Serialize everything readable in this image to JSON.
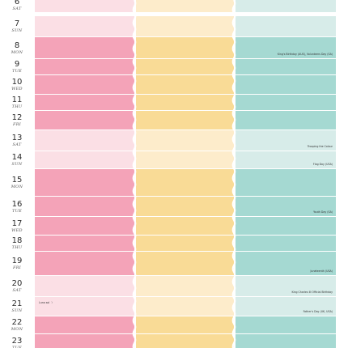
{
  "colors": {
    "pink": "#f4a3b8",
    "pink_light": "#fbdfe5",
    "yellow": "#f9db96",
    "yellow_light": "#fdeccb",
    "teal": "#a5d9d2",
    "teal_light": "#d7ece9"
  },
  "days": [
    {
      "num": "6",
      "abbr": "SAT",
      "weekend": true
    },
    {
      "num": "7",
      "abbr": "SUN",
      "weekend": true
    },
    {
      "num": "8",
      "abbr": "MON",
      "weekend": false,
      "note": "King's Birthday (AUS), Volunteers Day (SA)"
    },
    {
      "num": "9",
      "abbr": "TUE",
      "weekend": false
    },
    {
      "num": "10",
      "abbr": "WED",
      "weekend": false
    },
    {
      "num": "11",
      "abbr": "THU",
      "weekend": false
    },
    {
      "num": "12",
      "abbr": "FRI",
      "weekend": false
    },
    {
      "num": "13",
      "abbr": "SAT",
      "weekend": true,
      "note": "Trooping the Colour"
    },
    {
      "num": "14",
      "abbr": "SUN",
      "weekend": true,
      "note": "Flag Day (USA)"
    },
    {
      "num": "15",
      "abbr": "MON",
      "weekend": false
    },
    {
      "num": "16",
      "abbr": "TUE",
      "weekend": false,
      "note": "Youth Day (SA)"
    },
    {
      "num": "17",
      "abbr": "WED",
      "weekend": false
    },
    {
      "num": "18",
      "abbr": "THU",
      "weekend": false
    },
    {
      "num": "19",
      "abbr": "FRI",
      "weekend": false,
      "note": "Juneteenth (USA)"
    },
    {
      "num": "20",
      "abbr": "SAT",
      "weekend": true,
      "note": "King Charles III Official Birthday"
    },
    {
      "num": "21",
      "abbr": "SUN",
      "weekend": true,
      "note": "Father's Day (UK, USA)",
      "left_note": "Luna sol ☽"
    },
    {
      "num": "22",
      "abbr": "MON",
      "weekend": false
    },
    {
      "num": "23",
      "abbr": "TUE",
      "weekend": false
    }
  ]
}
